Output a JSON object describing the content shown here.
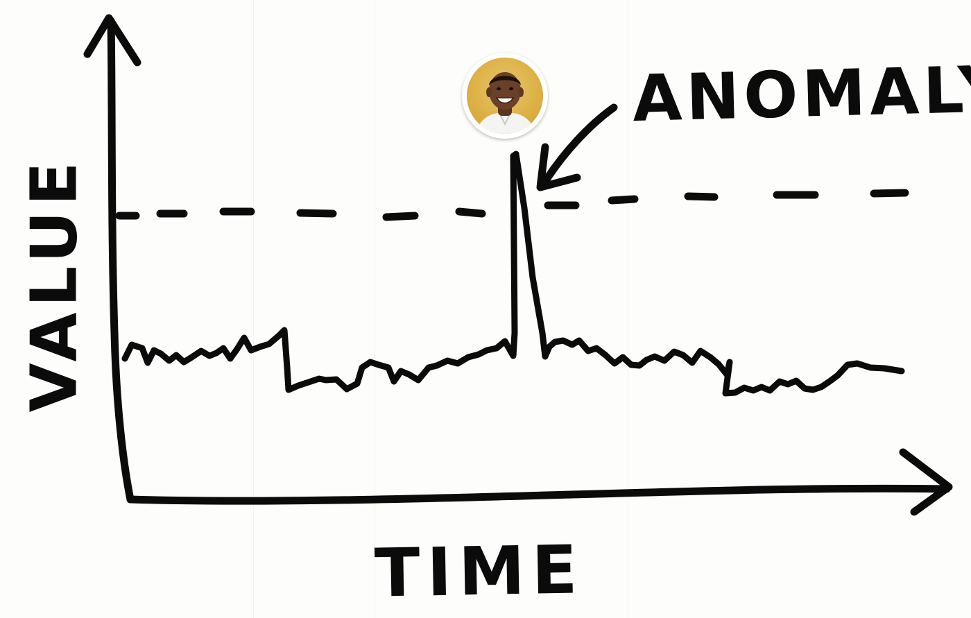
{
  "labels": {
    "anomaly": "ANOMALY",
    "x_axis": "TIME",
    "y_axis": "VALUE"
  },
  "avatar": {
    "icon": "person-photo-avatar"
  },
  "colors": {
    "ink": "#0b0b0b",
    "paper": "#fdfdfb",
    "avatar_background": "#d9ab3c"
  }
}
